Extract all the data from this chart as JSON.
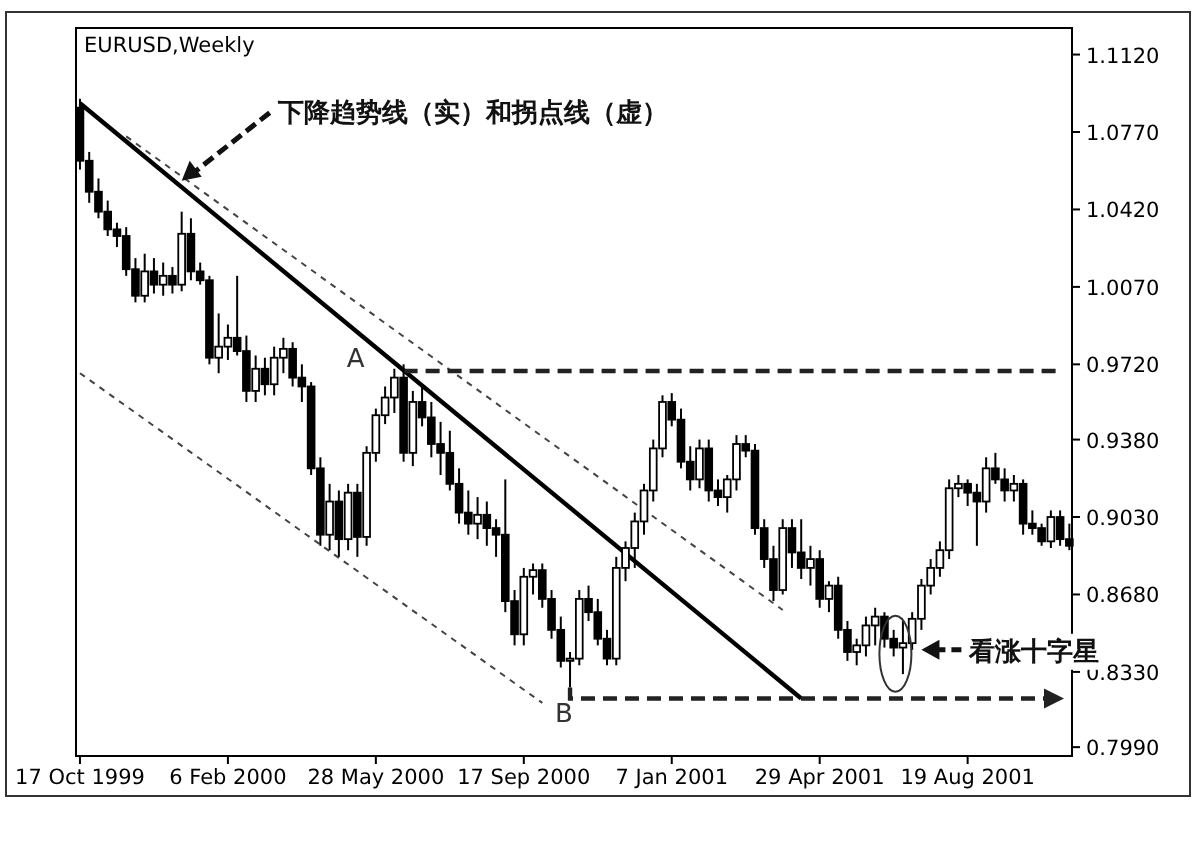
{
  "chart_data": {
    "type": "candlestick",
    "title": "EURUSD,Weekly",
    "color": "#000000",
    "x": [
      "1999-10-17",
      "1999-10-24",
      "1999-10-31",
      "1999-11-07",
      "1999-11-14",
      "1999-11-21",
      "1999-11-28",
      "1999-12-05",
      "1999-12-12",
      "1999-12-19",
      "1999-12-26",
      "2000-01-02",
      "2000-01-09",
      "2000-01-16",
      "2000-01-23",
      "2000-01-30",
      "2000-02-06",
      "2000-02-13",
      "2000-02-20",
      "2000-02-27",
      "2000-03-05",
      "2000-03-12",
      "2000-03-19",
      "2000-03-26",
      "2000-04-02",
      "2000-04-09",
      "2000-04-16",
      "2000-04-23",
      "2000-04-30",
      "2000-05-07",
      "2000-05-14",
      "2000-05-21",
      "2000-05-28",
      "2000-06-04",
      "2000-06-11",
      "2000-06-18",
      "2000-06-25",
      "2000-07-02",
      "2000-07-09",
      "2000-07-16",
      "2000-07-23",
      "2000-07-30",
      "2000-08-06",
      "2000-08-13",
      "2000-08-20",
      "2000-08-27",
      "2000-09-03",
      "2000-09-10",
      "2000-09-17",
      "2000-09-24",
      "2000-10-01",
      "2000-10-08",
      "2000-10-15",
      "2000-10-22",
      "2000-10-29",
      "2000-11-05",
      "2000-11-12",
      "2000-11-19",
      "2000-11-26",
      "2000-12-03",
      "2000-12-10",
      "2000-12-17",
      "2000-12-24",
      "2000-12-31",
      "2001-01-07",
      "2001-01-14",
      "2001-01-21",
      "2001-01-28",
      "2001-02-04",
      "2001-02-11",
      "2001-02-18",
      "2001-02-25",
      "2001-03-04",
      "2001-03-11",
      "2001-03-18",
      "2001-03-25",
      "2001-04-01",
      "2001-04-08",
      "2001-04-15",
      "2001-04-22",
      "2001-04-29",
      "2001-05-06",
      "2001-05-13",
      "2001-05-20",
      "2001-05-27",
      "2001-06-03",
      "2001-06-10",
      "2001-06-17",
      "2001-06-24",
      "2001-07-01",
      "2001-07-08",
      "2001-07-15",
      "2001-07-22",
      "2001-07-29",
      "2001-08-05",
      "2001-08-12",
      "2001-08-19",
      "2001-08-26",
      "2001-09-02",
      "2001-09-09",
      "2001-09-16",
      "2001-09-23",
      "2001-09-30",
      "2001-10-07",
      "2001-10-14",
      "2001-10-21",
      "2001-10-28",
      "2001-11-04"
    ],
    "ohlc": [
      [
        1.088,
        1.092,
        1.06,
        1.064
      ],
      [
        1.064,
        1.068,
        1.045,
        1.05
      ],
      [
        1.05,
        1.056,
        1.038,
        1.041
      ],
      [
        1.041,
        1.046,
        1.03,
        1.033
      ],
      [
        1.033,
        1.036,
        1.025,
        1.03
      ],
      [
        1.03,
        1.034,
        1.012,
        1.015
      ],
      [
        1.015,
        1.02,
        1.0,
        1.003
      ],
      [
        1.003,
        1.022,
        1.0,
        1.014
      ],
      [
        1.014,
        1.02,
        1.004,
        1.008
      ],
      [
        1.008,
        1.018,
        1.003,
        1.012
      ],
      [
        1.012,
        1.016,
        1.004,
        1.008
      ],
      [
        1.008,
        1.041,
        1.005,
        1.031
      ],
      [
        1.031,
        1.038,
        1.01,
        1.014
      ],
      [
        1.014,
        1.018,
        1.008,
        1.01
      ],
      [
        1.01,
        1.012,
        0.972,
        0.975
      ],
      [
        0.975,
        0.995,
        0.968,
        0.98
      ],
      [
        0.98,
        0.99,
        0.974,
        0.984
      ],
      [
        0.984,
        1.012,
        0.976,
        0.978
      ],
      [
        0.978,
        0.985,
        0.955,
        0.96
      ],
      [
        0.96,
        0.976,
        0.955,
        0.97
      ],
      [
        0.97,
        0.975,
        0.958,
        0.963
      ],
      [
        0.963,
        0.98,
        0.958,
        0.975
      ],
      [
        0.975,
        0.984,
        0.968,
        0.979
      ],
      [
        0.979,
        0.982,
        0.962,
        0.966
      ],
      [
        0.966,
        0.972,
        0.955,
        0.962
      ],
      [
        0.962,
        0.964,
        0.922,
        0.925
      ],
      [
        0.925,
        0.93,
        0.89,
        0.895
      ],
      [
        0.895,
        0.918,
        0.888,
        0.91
      ],
      [
        0.91,
        0.915,
        0.885,
        0.893
      ],
      [
        0.893,
        0.918,
        0.888,
        0.914
      ],
      [
        0.914,
        0.918,
        0.885,
        0.894
      ],
      [
        0.894,
        0.935,
        0.89,
        0.932
      ],
      [
        0.932,
        0.952,
        0.928,
        0.949
      ],
      [
        0.949,
        0.962,
        0.945,
        0.957
      ],
      [
        0.957,
        0.97,
        0.95,
        0.966
      ],
      [
        0.966,
        0.972,
        0.928,
        0.932
      ],
      [
        0.932,
        0.96,
        0.926,
        0.955
      ],
      [
        0.955,
        0.962,
        0.944,
        0.948
      ],
      [
        0.948,
        0.955,
        0.93,
        0.936
      ],
      [
        0.936,
        0.946,
        0.922,
        0.932
      ],
      [
        0.932,
        0.942,
        0.915,
        0.918
      ],
      [
        0.918,
        0.925,
        0.9,
        0.905
      ],
      [
        0.905,
        0.915,
        0.895,
        0.9
      ],
      [
        0.9,
        0.912,
        0.893,
        0.904
      ],
      [
        0.904,
        0.91,
        0.89,
        0.898
      ],
      [
        0.898,
        0.902,
        0.885,
        0.895
      ],
      [
        0.895,
        0.92,
        0.86,
        0.865
      ],
      [
        0.865,
        0.87,
        0.845,
        0.85
      ],
      [
        0.85,
        0.88,
        0.845,
        0.876
      ],
      [
        0.876,
        0.882,
        0.868,
        0.879
      ],
      [
        0.879,
        0.882,
        0.862,
        0.866
      ],
      [
        0.866,
        0.87,
        0.848,
        0.852
      ],
      [
        0.852,
        0.858,
        0.835,
        0.838
      ],
      [
        0.838,
        0.842,
        0.826,
        0.839
      ],
      [
        0.839,
        0.87,
        0.836,
        0.866
      ],
      [
        0.866,
        0.872,
        0.856,
        0.86
      ],
      [
        0.86,
        0.866,
        0.845,
        0.848
      ],
      [
        0.848,
        0.852,
        0.836,
        0.839
      ],
      [
        0.839,
        0.885,
        0.836,
        0.88
      ],
      [
        0.88,
        0.892,
        0.874,
        0.889
      ],
      [
        0.889,
        0.905,
        0.88,
        0.901
      ],
      [
        0.901,
        0.918,
        0.895,
        0.915
      ],
      [
        0.915,
        0.938,
        0.91,
        0.934
      ],
      [
        0.934,
        0.958,
        0.93,
        0.955
      ],
      [
        0.955,
        0.959,
        0.944,
        0.947
      ],
      [
        0.947,
        0.952,
        0.925,
        0.928
      ],
      [
        0.928,
        0.935,
        0.915,
        0.92
      ],
      [
        0.92,
        0.938,
        0.916,
        0.934
      ],
      [
        0.934,
        0.938,
        0.91,
        0.915
      ],
      [
        0.915,
        0.92,
        0.908,
        0.912
      ],
      [
        0.912,
        0.922,
        0.905,
        0.92
      ],
      [
        0.92,
        0.94,
        0.915,
        0.936
      ],
      [
        0.936,
        0.94,
        0.93,
        0.933
      ],
      [
        0.933,
        0.936,
        0.895,
        0.898
      ],
      [
        0.898,
        0.902,
        0.88,
        0.884
      ],
      [
        0.884,
        0.89,
        0.865,
        0.87
      ],
      [
        0.87,
        0.902,
        0.868,
        0.898
      ],
      [
        0.898,
        0.902,
        0.88,
        0.887
      ],
      [
        0.887,
        0.902,
        0.875,
        0.88
      ],
      [
        0.88,
        0.89,
        0.872,
        0.884
      ],
      [
        0.884,
        0.888,
        0.862,
        0.866
      ],
      [
        0.866,
        0.874,
        0.86,
        0.872
      ],
      [
        0.872,
        0.876,
        0.848,
        0.852
      ],
      [
        0.852,
        0.856,
        0.838,
        0.842
      ],
      [
        0.842,
        0.848,
        0.836,
        0.845
      ],
      [
        0.845,
        0.858,
        0.84,
        0.854
      ],
      [
        0.854,
        0.862,
        0.845,
        0.858
      ],
      [
        0.858,
        0.86,
        0.844,
        0.848
      ],
      [
        0.848,
        0.852,
        0.84,
        0.844
      ],
      [
        0.844,
        0.856,
        0.832,
        0.846
      ],
      [
        0.846,
        0.86,
        0.843,
        0.857
      ],
      [
        0.857,
        0.875,
        0.852,
        0.872
      ],
      [
        0.872,
        0.884,
        0.868,
        0.88
      ],
      [
        0.88,
        0.892,
        0.876,
        0.888
      ],
      [
        0.888,
        0.92,
        0.884,
        0.916
      ],
      [
        0.916,
        0.922,
        0.912,
        0.918
      ],
      [
        0.918,
        0.92,
        0.908,
        0.914
      ],
      [
        0.914,
        0.918,
        0.89,
        0.91
      ],
      [
        0.91,
        0.93,
        0.905,
        0.925
      ],
      [
        0.925,
        0.932,
        0.918,
        0.92
      ],
      [
        0.92,
        0.925,
        0.91,
        0.915
      ],
      [
        0.915,
        0.922,
        0.91,
        0.918
      ],
      [
        0.918,
        0.92,
        0.895,
        0.9
      ],
      [
        0.9,
        0.906,
        0.895,
        0.898
      ],
      [
        0.898,
        0.9,
        0.89,
        0.892
      ],
      [
        0.892,
        0.906,
        0.889,
        0.903
      ],
      [
        0.903,
        0.906,
        0.89,
        0.893
      ],
      [
        0.893,
        0.9,
        0.888,
        0.89
      ]
    ],
    "series": [
      {
        "type": "line",
        "color": "#000000",
        "line_style": "solid",
        "x": [
          "1999-10-17",
          "2001-04-15"
        ],
        "values": [
          1.09,
          0.821
        ]
      },
      {
        "type": "line",
        "color": "#444444",
        "line_style": "dotted",
        "x": [
          "1999-11-21",
          "2001-04-01"
        ],
        "values": [
          1.075,
          0.861
        ]
      },
      {
        "type": "line",
        "color": "#444444",
        "line_style": "dotted",
        "x": [
          "1999-10-17",
          "2000-10-01"
        ],
        "values": [
          0.968,
          0.819
        ]
      },
      {
        "type": "line",
        "color": "#222222",
        "line_style": "dashed",
        "x": [
          "2000-06-18",
          "2001-10-28"
        ],
        "values": [
          0.969,
          0.969
        ]
      }
    ],
    "annotations": [
      {
        "text": "下降趋势线（实）和拐点线（虚）",
        "x": "2000-01-02",
        "y": 1.055
      },
      {
        "text": "看涨十字星",
        "x": "2001-07-15",
        "y": 0.843
      },
      "A",
      "B"
    ],
    "xlim": [
      "1999-10-14",
      "2001-11-06"
    ],
    "xticks": [
      {
        "value": "1999-10-17",
        "label": "17 Oct 1999"
      },
      {
        "value": "2000-02-06",
        "label": "6 Feb 2000"
      },
      {
        "value": "2000-05-28",
        "label": "28 May 2000"
      },
      {
        "value": "2000-09-17",
        "label": "17 Sep 2000"
      },
      {
        "value": "2001-01-07",
        "label": "7 Jan 2001"
      },
      {
        "value": "2001-04-29",
        "label": "29 Apr 2001"
      },
      {
        "value": "2001-08-19",
        "label": "19 Aug 2001"
      }
    ],
    "ylim": [
      0.795,
      1.124
    ],
    "yticks": [
      {
        "value": 1.112,
        "label": "1.1120"
      },
      {
        "value": 1.077,
        "label": "1.0770"
      },
      {
        "value": 1.042,
        "label": "1.0420"
      },
      {
        "value": 1.007,
        "label": "1.0070"
      },
      {
        "value": 0.972,
        "label": "0.9720"
      },
      {
        "value": 0.938,
        "label": "0.9380"
      },
      {
        "value": 0.903,
        "label": "0.9030"
      },
      {
        "value": 0.868,
        "label": "0.8680"
      },
      {
        "value": 0.833,
        "label": "0.8330"
      },
      {
        "value": 0.799,
        "label": "0.7990"
      }
    ]
  }
}
